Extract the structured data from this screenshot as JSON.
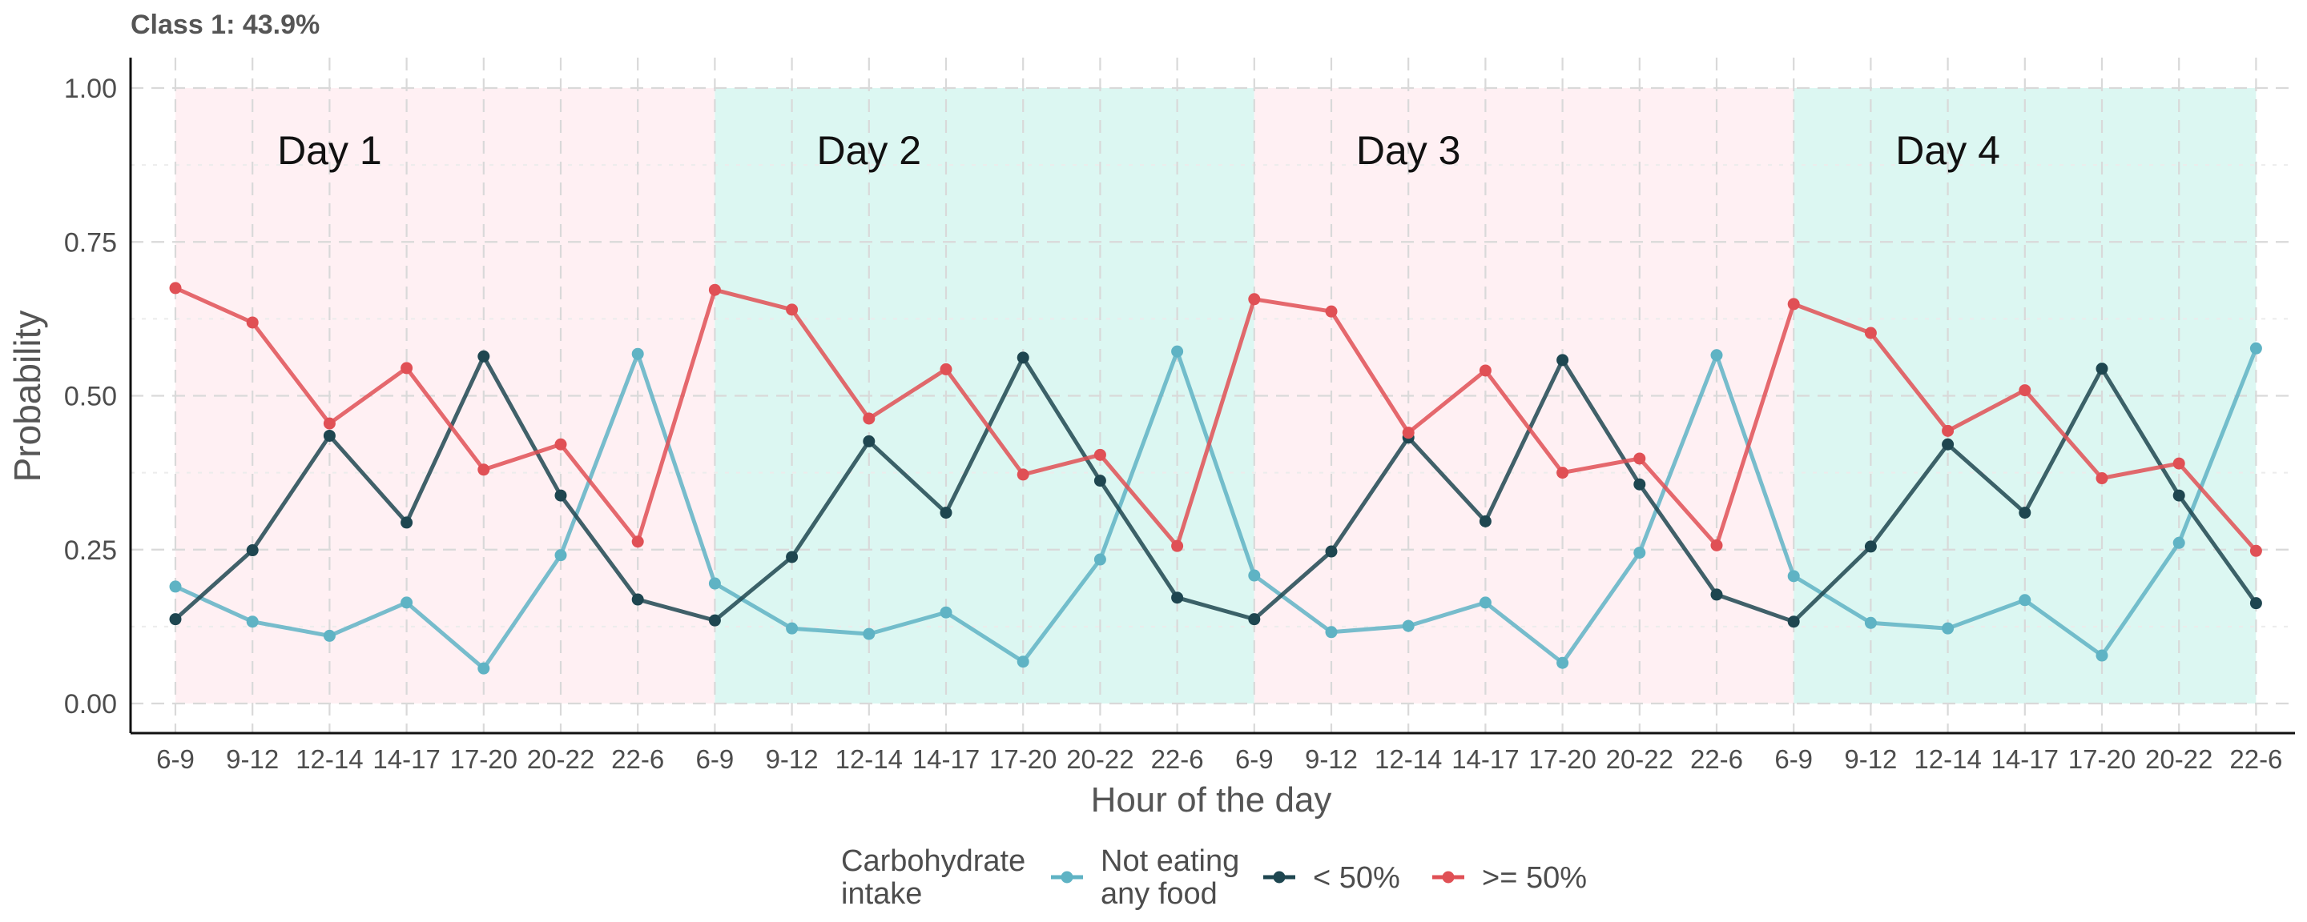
{
  "chart_data": {
    "type": "line",
    "title": "Class 1: 43.9%",
    "xlabel": "Hour of the day",
    "ylabel": "Probability",
    "ylim": [
      0,
      1
    ],
    "yticks": [
      0.0,
      0.25,
      0.5,
      0.75,
      1.0
    ],
    "ytick_labels": [
      "0.00",
      "0.25",
      "0.50",
      "0.75",
      "1.00"
    ],
    "grid": true,
    "legend_position": "bottom",
    "legend_title": "Carbohydrate\nintake",
    "categories": [
      "6-9",
      "9-12",
      "12-14",
      "14-17",
      "17-20",
      "20-22",
      "22-6",
      "6-9",
      "9-12",
      "12-14",
      "14-17",
      "17-20",
      "20-22",
      "22-6",
      "6-9",
      "9-12",
      "12-14",
      "14-17",
      "17-20",
      "20-22",
      "22-6",
      "6-9",
      "9-12",
      "12-14",
      "14-17",
      "17-20",
      "20-22",
      "22-6"
    ],
    "days": [
      {
        "label": "Day 1",
        "start": 0,
        "end": 7,
        "color": "#fff0f3"
      },
      {
        "label": "Day 2",
        "start": 7,
        "end": 14,
        "color": "#dcf7f2"
      },
      {
        "label": "Day 3",
        "start": 14,
        "end": 21,
        "color": "#fff0f3"
      },
      {
        "label": "Day 4",
        "start": 21,
        "end": 27,
        "color": "#dcf7f2"
      }
    ],
    "series": [
      {
        "name": "Not eating\nany food",
        "color": "#5fb3c4",
        "values": [
          0.19,
          0.133,
          0.11,
          0.164,
          0.057,
          0.241,
          0.568,
          0.195,
          0.122,
          0.113,
          0.148,
          0.068,
          0.234,
          0.572,
          0.208,
          0.116,
          0.126,
          0.164,
          0.066,
          0.245,
          0.566,
          0.207,
          0.131,
          0.122,
          0.168,
          0.078,
          0.261,
          0.577
        ]
      },
      {
        "name": "< 50%",
        "color": "#1e4650",
        "values": [
          0.137,
          0.249,
          0.435,
          0.294,
          0.564,
          0.338,
          0.169,
          0.135,
          0.238,
          0.426,
          0.31,
          0.562,
          0.362,
          0.172,
          0.137,
          0.247,
          0.432,
          0.296,
          0.558,
          0.356,
          0.177,
          0.133,
          0.255,
          0.421,
          0.31,
          0.544,
          0.338,
          0.163
        ]
      },
      {
        "name": ">= 50%",
        "color": "#e05055",
        "values": [
          0.675,
          0.619,
          0.455,
          0.545,
          0.38,
          0.421,
          0.263,
          0.672,
          0.64,
          0.463,
          0.543,
          0.372,
          0.404,
          0.256,
          0.657,
          0.637,
          0.44,
          0.541,
          0.375,
          0.398,
          0.257,
          0.649,
          0.602,
          0.443,
          0.509,
          0.366,
          0.39,
          0.248
        ]
      }
    ]
  }
}
